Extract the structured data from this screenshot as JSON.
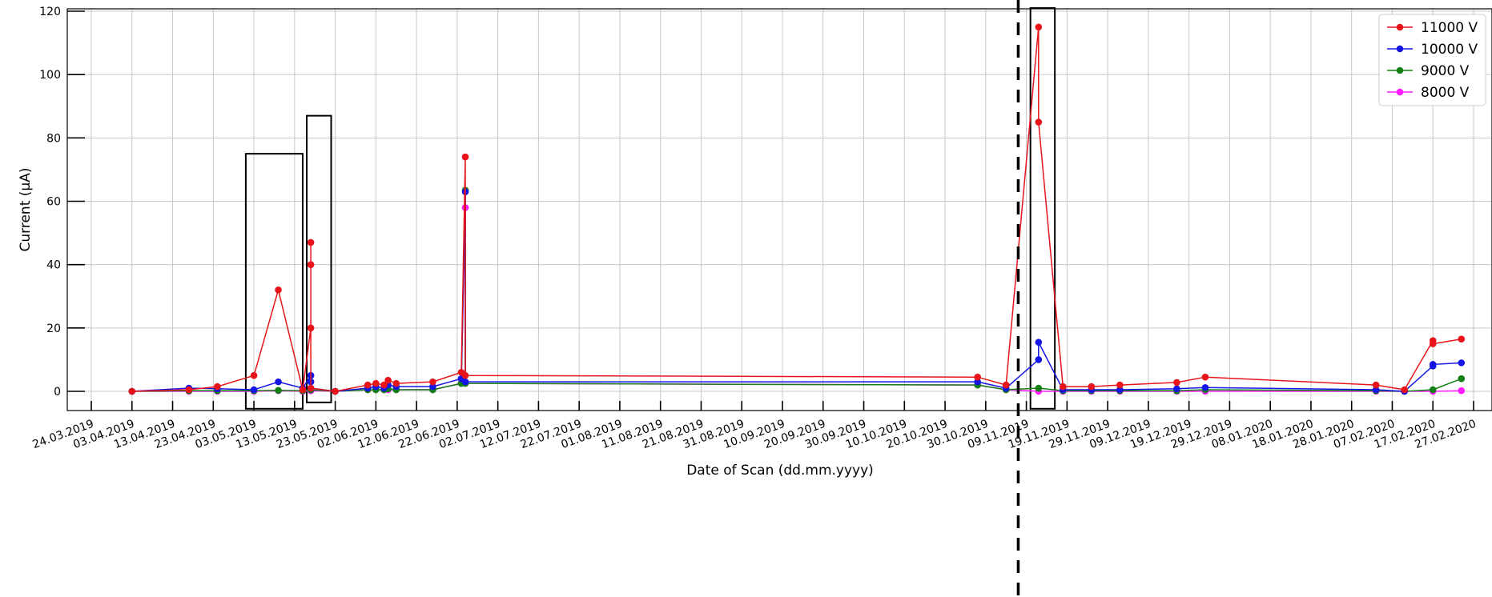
{
  "chart_data": {
    "type": "line",
    "title": "",
    "xlabel": "Date of Scan (dd.mm.yyyy)",
    "ylabel": "Current (μA)",
    "ylim": [
      -6,
      120
    ],
    "yticks": [
      0,
      20,
      40,
      60,
      80,
      100,
      120
    ],
    "xlim": [
      "2019-03-24",
      "2020-02-27"
    ],
    "xticks": [
      "24.03.2019",
      "03.04.2019",
      "13.04.2019",
      "23.04.2019",
      "03.05.2019",
      "13.05.2019",
      "23.05.2019",
      "02.06.2019",
      "12.06.2019",
      "22.06.2019",
      "02.07.2019",
      "12.07.2019",
      "22.07.2019",
      "01.08.2019",
      "11.08.2019",
      "21.08.2019",
      "31.08.2019",
      "10.09.2019",
      "20.09.2019",
      "30.09.2019",
      "10.10.2019",
      "20.10.2019",
      "30.10.2019",
      "09.11.2019",
      "19.11.2019",
      "29.11.2019",
      "09.12.2019",
      "19.12.2019",
      "29.12.2019",
      "08.01.2020",
      "18.01.2020",
      "28.01.2020",
      "07.02.2020",
      "17.02.2020",
      "27.02.2020"
    ],
    "grid": true,
    "legend_position": "top-right",
    "colors": {
      "11000 V": "#e8141a",
      "10000 V": "#1515e6",
      "9000 V": "#138013",
      "8000 V": "#ff1aff"
    },
    "series": [
      {
        "name": "11000 V",
        "points": [
          [
            "2019-04-03",
            0
          ],
          [
            "2019-04-17",
            0.5
          ],
          [
            "2019-04-24",
            1.5
          ],
          [
            "2019-05-03",
            5
          ],
          [
            "2019-05-09",
            32
          ],
          [
            "2019-05-15",
            0.5
          ],
          [
            "2019-05-17",
            20
          ],
          [
            "2019-05-17",
            40
          ],
          [
            "2019-05-17",
            47
          ],
          [
            "2019-05-17",
            1
          ],
          [
            "2019-05-23",
            0
          ],
          [
            "2019-05-31",
            2
          ],
          [
            "2019-06-02",
            2.5
          ],
          [
            "2019-06-04",
            2
          ],
          [
            "2019-06-05",
            3.5
          ],
          [
            "2019-06-07",
            2.5
          ],
          [
            "2019-06-16",
            3
          ],
          [
            "2019-06-23",
            6
          ],
          [
            "2019-06-24",
            74
          ],
          [
            "2019-06-24",
            5
          ],
          [
            "2019-10-28",
            4.5
          ],
          [
            "2019-11-04",
            2
          ],
          [
            "2019-11-12",
            115
          ],
          [
            "2019-11-12",
            85
          ],
          [
            "2019-11-18",
            1.5
          ],
          [
            "2019-11-25",
            1.5
          ],
          [
            "2019-12-02",
            2
          ],
          [
            "2019-12-16",
            2.8
          ],
          [
            "2019-12-23",
            4.5
          ],
          [
            "2020-02-03",
            2
          ],
          [
            "2020-02-10",
            0.5
          ],
          [
            "2020-02-17",
            16
          ],
          [
            "2020-02-17",
            15
          ],
          [
            "2020-02-24",
            16.5
          ]
        ]
      },
      {
        "name": "10000 V",
        "points": [
          [
            "2019-04-03",
            0
          ],
          [
            "2019-04-17",
            1
          ],
          [
            "2019-04-24",
            0.8
          ],
          [
            "2019-05-03",
            0.5
          ],
          [
            "2019-05-09",
            3
          ],
          [
            "2019-05-15",
            1
          ],
          [
            "2019-05-17",
            5
          ],
          [
            "2019-05-17",
            3
          ],
          [
            "2019-05-17",
            1
          ],
          [
            "2019-05-23",
            0
          ],
          [
            "2019-05-31",
            1
          ],
          [
            "2019-06-02",
            1.5
          ],
          [
            "2019-06-04",
            1
          ],
          [
            "2019-06-05",
            2
          ],
          [
            "2019-06-07",
            1.5
          ],
          [
            "2019-06-16",
            1.5
          ],
          [
            "2019-06-23",
            4
          ],
          [
            "2019-06-24",
            63
          ],
          [
            "2019-06-24",
            3
          ],
          [
            "2019-10-28",
            3
          ],
          [
            "2019-11-04",
            1
          ],
          [
            "2019-11-12",
            10
          ],
          [
            "2019-11-12",
            15.5
          ],
          [
            "2019-11-18",
            0.5
          ],
          [
            "2019-11-25",
            0.5
          ],
          [
            "2019-12-02",
            0.5
          ],
          [
            "2019-12-16",
            0.8
          ],
          [
            "2019-12-23",
            1.2
          ],
          [
            "2020-02-03",
            0.5
          ],
          [
            "2020-02-10",
            0
          ],
          [
            "2020-02-17",
            8
          ],
          [
            "2020-02-17",
            8.5
          ],
          [
            "2020-02-24",
            9
          ]
        ]
      },
      {
        "name": "9000 V",
        "points": [
          [
            "2019-04-03",
            0
          ],
          [
            "2019-04-17",
            0.2
          ],
          [
            "2019-04-24",
            0.2
          ],
          [
            "2019-05-03",
            0.2
          ],
          [
            "2019-05-09",
            0.3
          ],
          [
            "2019-05-15",
            0.2
          ],
          [
            "2019-05-17",
            0.5
          ],
          [
            "2019-05-17",
            0.5
          ],
          [
            "2019-05-23",
            0
          ],
          [
            "2019-05-31",
            0.5
          ],
          [
            "2019-06-02",
            0.5
          ],
          [
            "2019-06-04",
            0.5
          ],
          [
            "2019-06-05",
            0.8
          ],
          [
            "2019-06-07",
            0.5
          ],
          [
            "2019-06-16",
            0.5
          ],
          [
            "2019-06-23",
            2.5
          ],
          [
            "2019-06-24",
            63.5
          ],
          [
            "2019-06-24",
            2.5
          ],
          [
            "2019-10-28",
            2
          ],
          [
            "2019-11-04",
            0.5
          ],
          [
            "2019-11-12",
            1
          ],
          [
            "2019-11-18",
            0.2
          ],
          [
            "2019-11-25",
            0.2
          ],
          [
            "2019-12-02",
            0.2
          ],
          [
            "2019-12-16",
            0.2
          ],
          [
            "2019-12-23",
            0.5
          ],
          [
            "2020-02-03",
            0.2
          ],
          [
            "2020-02-10",
            0
          ],
          [
            "2020-02-17",
            0.5
          ],
          [
            "2020-02-24",
            4
          ]
        ]
      },
      {
        "name": "8000 V",
        "points": [
          [
            "2019-04-03",
            0
          ],
          [
            "2019-04-17",
            0
          ],
          [
            "2019-04-24",
            0
          ],
          [
            "2019-05-03",
            0
          ],
          [
            "2019-05-09",
            0.2
          ],
          [
            "2019-05-15",
            0
          ],
          [
            "2019-05-17",
            0.2
          ],
          [
            "2019-05-17",
            0.2
          ],
          [
            "2019-05-23",
            0
          ],
          [
            "2019-05-31",
            0.5
          ],
          [
            "2019-06-02",
            0.5
          ],
          [
            "2019-06-04",
            0.5
          ],
          [
            "2019-06-05",
            0.5
          ],
          [
            "2019-06-07",
            0.5
          ],
          [
            "2019-06-16",
            0.5
          ],
          [
            "2019-06-23",
            2.5
          ],
          [
            "2019-06-24",
            58
          ],
          [
            "2019-06-24",
            2.5
          ],
          [
            "2019-10-28",
            2
          ],
          [
            "2019-11-04",
            0.5
          ],
          [
            "2019-11-12",
            0
          ],
          [
            "2019-11-18",
            0
          ],
          [
            "2019-11-25",
            0
          ],
          [
            "2019-12-02",
            0
          ],
          [
            "2019-12-16",
            0
          ],
          [
            "2019-12-23",
            0
          ],
          [
            "2020-02-03",
            0
          ],
          [
            "2020-02-10",
            0
          ],
          [
            "2020-02-17",
            0
          ],
          [
            "2020-02-24",
            0.2
          ]
        ]
      }
    ],
    "annotation_boxes": [
      {
        "x_start": "2019-05-01",
        "x_end": "2019-05-15",
        "y_bottom": -5.5,
        "y_top": 75
      },
      {
        "x_start": "2019-05-16",
        "x_end": "2019-05-22",
        "y_bottom": -3.5,
        "y_top": 87
      },
      {
        "x_start": "2019-11-10",
        "x_end": "2019-11-16",
        "y_bottom": -5.5,
        "y_top": 121
      }
    ],
    "vertical_marker": {
      "date": "2019-11-07",
      "style": "dashed"
    }
  }
}
